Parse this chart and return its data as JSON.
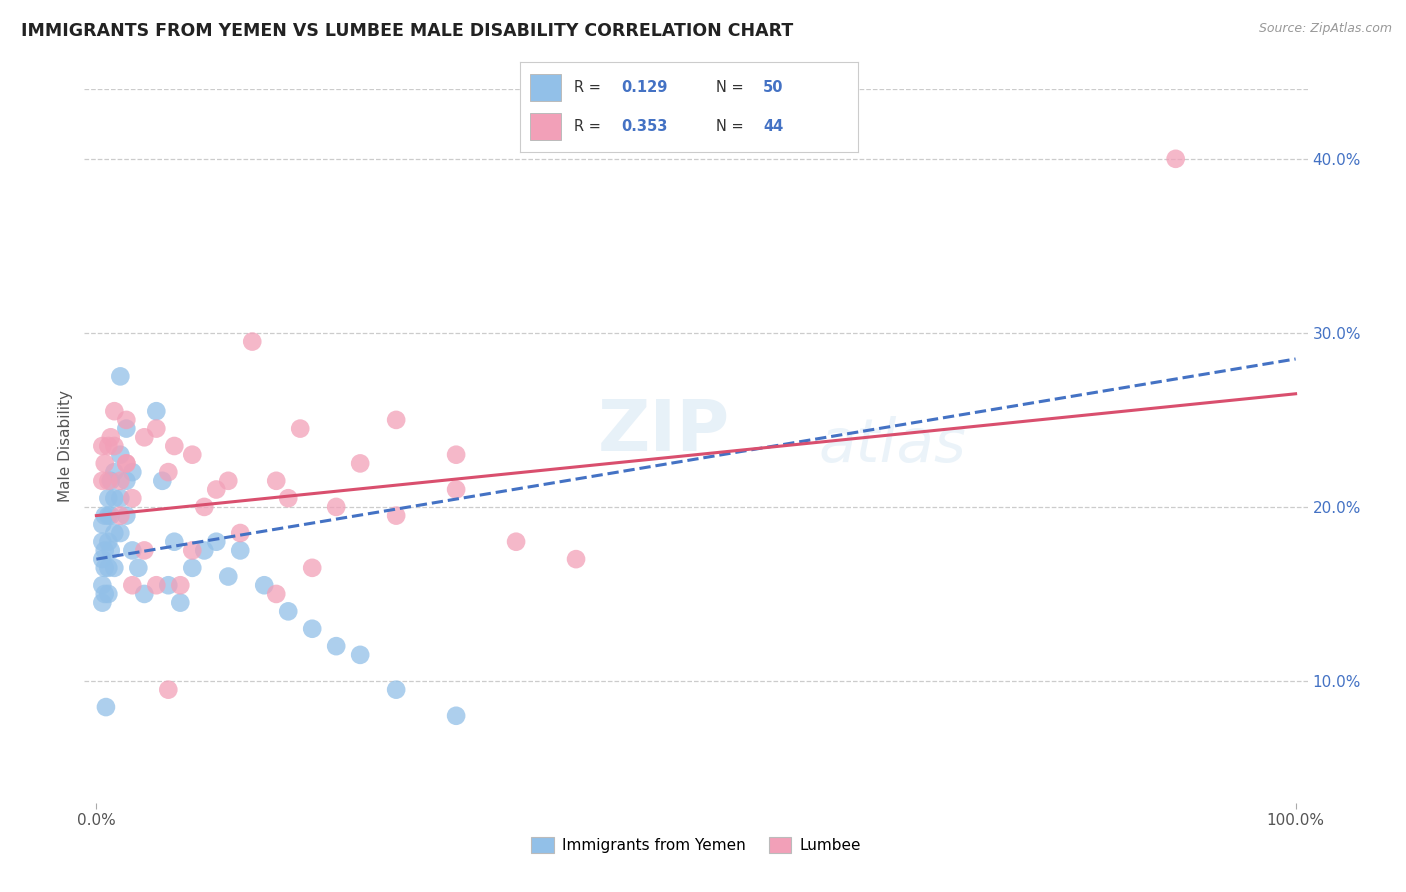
{
  "title": "IMMIGRANTS FROM YEMEN VS LUMBEE MALE DISABILITY CORRELATION CHART",
  "source": "Source: ZipAtlas.com",
  "ylabel": "Male Disability",
  "watermark": "ZIPatlas",
  "legend_r_blue": "0.129",
  "legend_n_blue": "50",
  "legend_r_pink": "0.353",
  "legend_n_pink": "44",
  "legend_label_blue": "Immigrants from Yemen",
  "legend_label_pink": "Lumbee",
  "blue_color": "#92C0E8",
  "pink_color": "#F2A0B8",
  "blue_line_color": "#4472C4",
  "pink_line_color": "#D94F6E",
  "grid_color": "#CCCCCC",
  "background_color": "#FFFFFF",
  "yticks_color": "#4472C4",
  "ytick_positions": [
    0.1,
    0.2,
    0.3,
    0.4
  ],
  "ytick_labels": [
    "10.0%",
    "20.0%",
    "30.0%",
    "40.0%"
  ],
  "blue_x": [
    0.005,
    0.005,
    0.005,
    0.005,
    0.005,
    0.007,
    0.007,
    0.007,
    0.007,
    0.01,
    0.01,
    0.01,
    0.01,
    0.01,
    0.012,
    0.012,
    0.012,
    0.015,
    0.015,
    0.015,
    0.015,
    0.02,
    0.02,
    0.02,
    0.025,
    0.025,
    0.03,
    0.03,
    0.035,
    0.04,
    0.05,
    0.055,
    0.06,
    0.065,
    0.07,
    0.08,
    0.09,
    0.1,
    0.11,
    0.12,
    0.14,
    0.16,
    0.18,
    0.2,
    0.22,
    0.25,
    0.3,
    0.02,
    0.025,
    0.008
  ],
  "blue_y": [
    0.19,
    0.18,
    0.17,
    0.155,
    0.145,
    0.195,
    0.175,
    0.165,
    0.15,
    0.205,
    0.195,
    0.18,
    0.165,
    0.15,
    0.215,
    0.195,
    0.175,
    0.22,
    0.205,
    0.185,
    0.165,
    0.23,
    0.205,
    0.185,
    0.215,
    0.195,
    0.22,
    0.175,
    0.165,
    0.15,
    0.255,
    0.215,
    0.155,
    0.18,
    0.145,
    0.165,
    0.175,
    0.18,
    0.16,
    0.175,
    0.155,
    0.14,
    0.13,
    0.12,
    0.115,
    0.095,
    0.08,
    0.275,
    0.245,
    0.085
  ],
  "pink_x": [
    0.005,
    0.005,
    0.007,
    0.01,
    0.01,
    0.012,
    0.015,
    0.015,
    0.02,
    0.025,
    0.025,
    0.03,
    0.04,
    0.05,
    0.06,
    0.065,
    0.08,
    0.09,
    0.1,
    0.11,
    0.13,
    0.15,
    0.17,
    0.2,
    0.22,
    0.25,
    0.3,
    0.35,
    0.4,
    0.02,
    0.025,
    0.06,
    0.07,
    0.08,
    0.15,
    0.18,
    0.25,
    0.3,
    0.03,
    0.04,
    0.05,
    0.12,
    0.16,
    0.9
  ],
  "pink_y": [
    0.235,
    0.215,
    0.225,
    0.235,
    0.215,
    0.24,
    0.255,
    0.235,
    0.215,
    0.25,
    0.225,
    0.205,
    0.24,
    0.245,
    0.22,
    0.235,
    0.23,
    0.2,
    0.21,
    0.215,
    0.295,
    0.215,
    0.245,
    0.2,
    0.225,
    0.25,
    0.23,
    0.18,
    0.17,
    0.195,
    0.225,
    0.095,
    0.155,
    0.175,
    0.15,
    0.165,
    0.195,
    0.21,
    0.155,
    0.175,
    0.155,
    0.185,
    0.205,
    0.4
  ]
}
